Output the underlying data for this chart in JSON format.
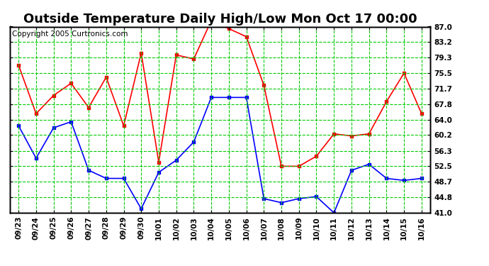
{
  "title": "Outside Temperature Daily High/Low Mon Oct 17 00:00",
  "copyright": "Copyright 2005 Curtronics.com",
  "x_labels": [
    "09/23",
    "09/24",
    "09/25",
    "09/26",
    "09/27",
    "09/28",
    "09/29",
    "09/30",
    "10/01",
    "10/02",
    "10/03",
    "10/04",
    "10/05",
    "10/06",
    "10/07",
    "10/08",
    "10/09",
    "10/10",
    "10/11",
    "10/12",
    "10/13",
    "10/14",
    "10/15",
    "10/16"
  ],
  "high_values": [
    77.5,
    65.5,
    70.0,
    73.0,
    67.0,
    74.5,
    62.5,
    80.5,
    53.5,
    80.0,
    79.0,
    88.5,
    86.5,
    84.5,
    72.5,
    52.5,
    52.5,
    55.0,
    60.5,
    60.0,
    60.5,
    68.5,
    75.5,
    65.5
  ],
  "low_values": [
    62.5,
    54.5,
    62.0,
    63.5,
    51.5,
    49.5,
    49.5,
    42.0,
    51.0,
    54.0,
    58.5,
    69.5,
    69.5,
    69.5,
    44.5,
    43.5,
    44.5,
    45.0,
    41.0,
    51.5,
    53.0,
    49.5,
    49.0,
    49.5
  ],
  "high_color": "#ff0000",
  "low_color": "#0000ff",
  "bg_color": "#ffffff",
  "plot_bg_color": "#ffffff",
  "grid_color": "#00cc00",
  "y_ticks": [
    41.0,
    44.8,
    48.7,
    52.5,
    56.3,
    60.2,
    64.0,
    67.8,
    71.7,
    75.5,
    79.3,
    83.2,
    87.0
  ],
  "y_min": 41.0,
  "y_max": 87.0,
  "title_fontsize": 13,
  "tick_fontsize": 7.5,
  "copyright_fontsize": 7.5
}
